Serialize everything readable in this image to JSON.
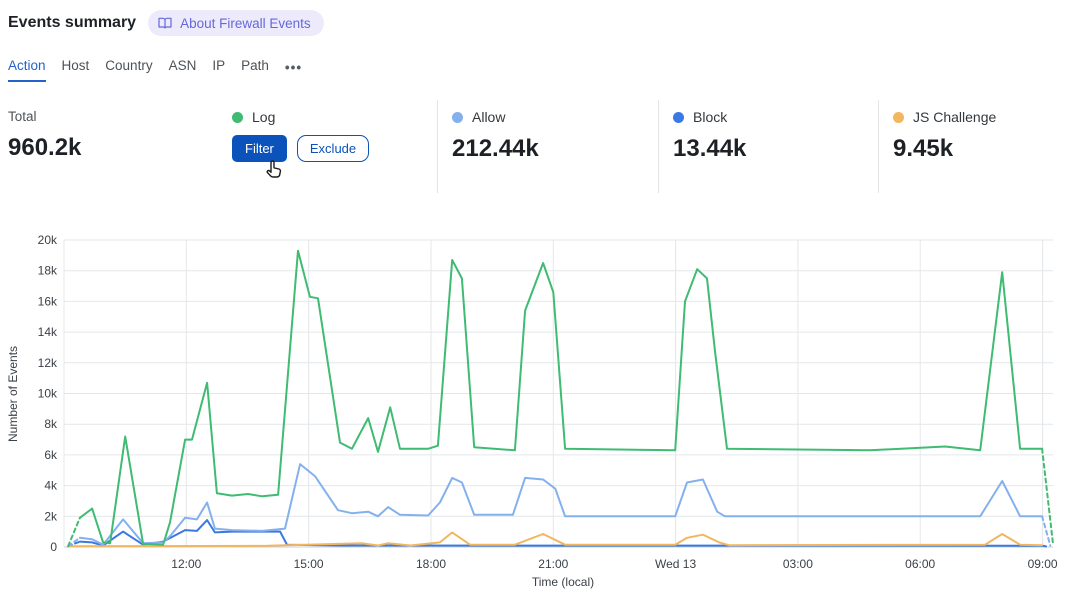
{
  "header": {
    "title": "Events summary",
    "badge_label": "About Firewall Events"
  },
  "tabs": {
    "items": [
      {
        "label": "Action",
        "active": true
      },
      {
        "label": "Host",
        "active": false
      },
      {
        "label": "Country",
        "active": false
      },
      {
        "label": "ASN",
        "active": false
      },
      {
        "label": "IP",
        "active": false
      },
      {
        "label": "Path",
        "active": false
      }
    ],
    "more_label": "•••"
  },
  "stats": {
    "total": {
      "label": "Total",
      "value": "960.2k"
    },
    "series": [
      {
        "name": "Log",
        "color": "#3fbb72",
        "hovered": true,
        "filter_label": "Filter",
        "exclude_label": "Exclude"
      },
      {
        "name": "Allow",
        "color": "#85b0ee",
        "value": "212.44k"
      },
      {
        "name": "Block",
        "color": "#3a78e2",
        "value": "13.44k"
      },
      {
        "name": "JS Challenge",
        "color": "#f2b660",
        "value": "9.45k"
      }
    ]
  },
  "colors": {
    "brand_blue": "#0b53ba",
    "active_tab_blue": "#2362c9",
    "badge_bg": "#edebfb",
    "badge_text": "#6468d8",
    "grid_line": "#e4e7ea",
    "zero_line": "#cbd0d5"
  },
  "chart_data": {
    "type": "line",
    "title": "",
    "xlabel": "Time (local)",
    "ylabel": "Number of Events",
    "x_unit_note": "hours from chart start; tick every 3h, 'Wed 13' = midnight",
    "xlim": [
      0,
      24.3
    ],
    "ylim_k": [
      0,
      20
    ],
    "grid": true,
    "legend_position": "in stat cards above chart",
    "y_ticks": [
      {
        "v": 0,
        "label": "0"
      },
      {
        "v": 2,
        "label": "2k"
      },
      {
        "v": 4,
        "label": "4k"
      },
      {
        "v": 6,
        "label": "6k"
      },
      {
        "v": 8,
        "label": "8k"
      },
      {
        "v": 10,
        "label": "10k"
      },
      {
        "v": 12,
        "label": "12k"
      },
      {
        "v": 14,
        "label": "14k"
      },
      {
        "v": 16,
        "label": "16k"
      },
      {
        "v": 18,
        "label": "18k"
      },
      {
        "v": 20,
        "label": "20k"
      }
    ],
    "x_ticks": [
      {
        "t": 0,
        "label": ""
      },
      {
        "t": 3,
        "label": "12:00"
      },
      {
        "t": 6,
        "label": "15:00"
      },
      {
        "t": 9,
        "label": "18:00"
      },
      {
        "t": 12,
        "label": "21:00"
      },
      {
        "t": 15,
        "label": "Wed 13"
      },
      {
        "t": 18,
        "label": "03:00"
      },
      {
        "t": 21,
        "label": "06:00"
      },
      {
        "t": 24,
        "label": "09:00"
      }
    ],
    "series": [
      {
        "name": "Block",
        "color": "#3a78e2",
        "dashed_head": true,
        "dashed_tail": true,
        "points_t_vk": [
          [
            0.1,
            0.05
          ],
          [
            0.39,
            0.35
          ],
          [
            0.69,
            0.3
          ],
          [
            0.96,
            0.1
          ],
          [
            1.45,
            1.0
          ],
          [
            1.94,
            0.15
          ],
          [
            2.43,
            0.35
          ],
          [
            2.97,
            1.1
          ],
          [
            3.26,
            1.05
          ],
          [
            3.51,
            1.75
          ],
          [
            3.7,
            0.95
          ],
          [
            4.12,
            1.0
          ],
          [
            5.3,
            1.0
          ],
          [
            5.47,
            0.15
          ],
          [
            6.77,
            0.1
          ],
          [
            12.0,
            0.09
          ],
          [
            18.0,
            0.09
          ],
          [
            23.99,
            0.08
          ],
          [
            24.14,
            0.02
          ]
        ]
      },
      {
        "name": "JS Challenge",
        "color": "#f2b660",
        "dashed_head": false,
        "dashed_tail": false,
        "points_t_vk": [
          [
            0.1,
            0.05
          ],
          [
            2.0,
            0.06
          ],
          [
            5.0,
            0.08
          ],
          [
            7.3,
            0.25
          ],
          [
            7.7,
            0.1
          ],
          [
            7.95,
            0.25
          ],
          [
            8.5,
            0.1
          ],
          [
            9.22,
            0.3
          ],
          [
            9.52,
            0.95
          ],
          [
            9.96,
            0.15
          ],
          [
            11.06,
            0.15
          ],
          [
            11.75,
            0.85
          ],
          [
            12.29,
            0.15
          ],
          [
            14.99,
            0.15
          ],
          [
            15.28,
            0.6
          ],
          [
            15.67,
            0.8
          ],
          [
            16.07,
            0.3
          ],
          [
            16.31,
            0.12
          ],
          [
            22.59,
            0.15
          ],
          [
            23.01,
            0.85
          ],
          [
            23.45,
            0.15
          ],
          [
            23.99,
            0.12
          ]
        ]
      },
      {
        "name": "Allow",
        "color": "#85b0ee",
        "dashed_head": true,
        "dashed_tail": true,
        "points_t_vk": [
          [
            0.1,
            0.05
          ],
          [
            0.39,
            0.6
          ],
          [
            0.69,
            0.5
          ],
          [
            0.96,
            0.15
          ],
          [
            1.45,
            1.8
          ],
          [
            1.94,
            0.25
          ],
          [
            2.43,
            0.3
          ],
          [
            2.6,
            0.7
          ],
          [
            2.97,
            1.9
          ],
          [
            3.26,
            1.8
          ],
          [
            3.51,
            2.9
          ],
          [
            3.7,
            1.2
          ],
          [
            4.12,
            1.1
          ],
          [
            4.86,
            1.05
          ],
          [
            5.42,
            1.2
          ],
          [
            5.79,
            5.4
          ],
          [
            6.16,
            4.6
          ],
          [
            6.72,
            2.4
          ],
          [
            7.06,
            2.2
          ],
          [
            7.46,
            2.3
          ],
          [
            7.7,
            2.0
          ],
          [
            7.95,
            2.6
          ],
          [
            8.24,
            2.1
          ],
          [
            8.93,
            2.05
          ],
          [
            9.22,
            2.9
          ],
          [
            9.52,
            4.5
          ],
          [
            9.76,
            4.2
          ],
          [
            10.06,
            2.1
          ],
          [
            11.01,
            2.1
          ],
          [
            11.31,
            4.5
          ],
          [
            11.75,
            4.4
          ],
          [
            12.05,
            3.8
          ],
          [
            12.29,
            2.0
          ],
          [
            14.99,
            2.0
          ],
          [
            15.28,
            4.2
          ],
          [
            15.67,
            4.4
          ],
          [
            16.02,
            2.3
          ],
          [
            16.21,
            2.0
          ],
          [
            22.47,
            2.0
          ],
          [
            23.01,
            4.3
          ],
          [
            23.45,
            2.0
          ],
          [
            23.99,
            2.0
          ],
          [
            24.19,
            0.1
          ]
        ]
      },
      {
        "name": "Log",
        "color": "#3fbb72",
        "dashed_head": true,
        "dashed_tail": true,
        "points_t_vk": [
          [
            0.1,
            0.05
          ],
          [
            0.39,
            1.9
          ],
          [
            0.69,
            2.5
          ],
          [
            0.96,
            0.3
          ],
          [
            1.13,
            0.25
          ],
          [
            1.5,
            7.2
          ],
          [
            1.94,
            0.2
          ],
          [
            2.43,
            0.15
          ],
          [
            2.6,
            1.6
          ],
          [
            2.97,
            7.0
          ],
          [
            3.14,
            7.0
          ],
          [
            3.51,
            10.7
          ],
          [
            3.75,
            3.5
          ],
          [
            4.12,
            3.35
          ],
          [
            4.51,
            3.45
          ],
          [
            4.86,
            3.3
          ],
          [
            5.25,
            3.4
          ],
          [
            5.74,
            19.3
          ],
          [
            6.03,
            16.3
          ],
          [
            6.23,
            16.2
          ],
          [
            6.77,
            6.8
          ],
          [
            7.06,
            6.4
          ],
          [
            7.46,
            8.4
          ],
          [
            7.7,
            6.2
          ],
          [
            8.0,
            9.1
          ],
          [
            8.24,
            6.4
          ],
          [
            8.93,
            6.4
          ],
          [
            9.17,
            6.6
          ],
          [
            9.52,
            18.7
          ],
          [
            9.76,
            17.5
          ],
          [
            10.06,
            6.5
          ],
          [
            11.06,
            6.3
          ],
          [
            11.31,
            15.4
          ],
          [
            11.75,
            18.5
          ],
          [
            12.0,
            16.6
          ],
          [
            12.29,
            6.4
          ],
          [
            14.99,
            6.3
          ],
          [
            15.23,
            16.0
          ],
          [
            15.53,
            18.1
          ],
          [
            15.77,
            17.5
          ],
          [
            15.97,
            12.7
          ],
          [
            16.26,
            6.4
          ],
          [
            19.77,
            6.3
          ],
          [
            21.61,
            6.55
          ],
          [
            22.47,
            6.3
          ],
          [
            23.01,
            17.9
          ],
          [
            23.45,
            6.4
          ],
          [
            23.99,
            6.4
          ],
          [
            24.26,
            0.1
          ]
        ]
      }
    ]
  }
}
